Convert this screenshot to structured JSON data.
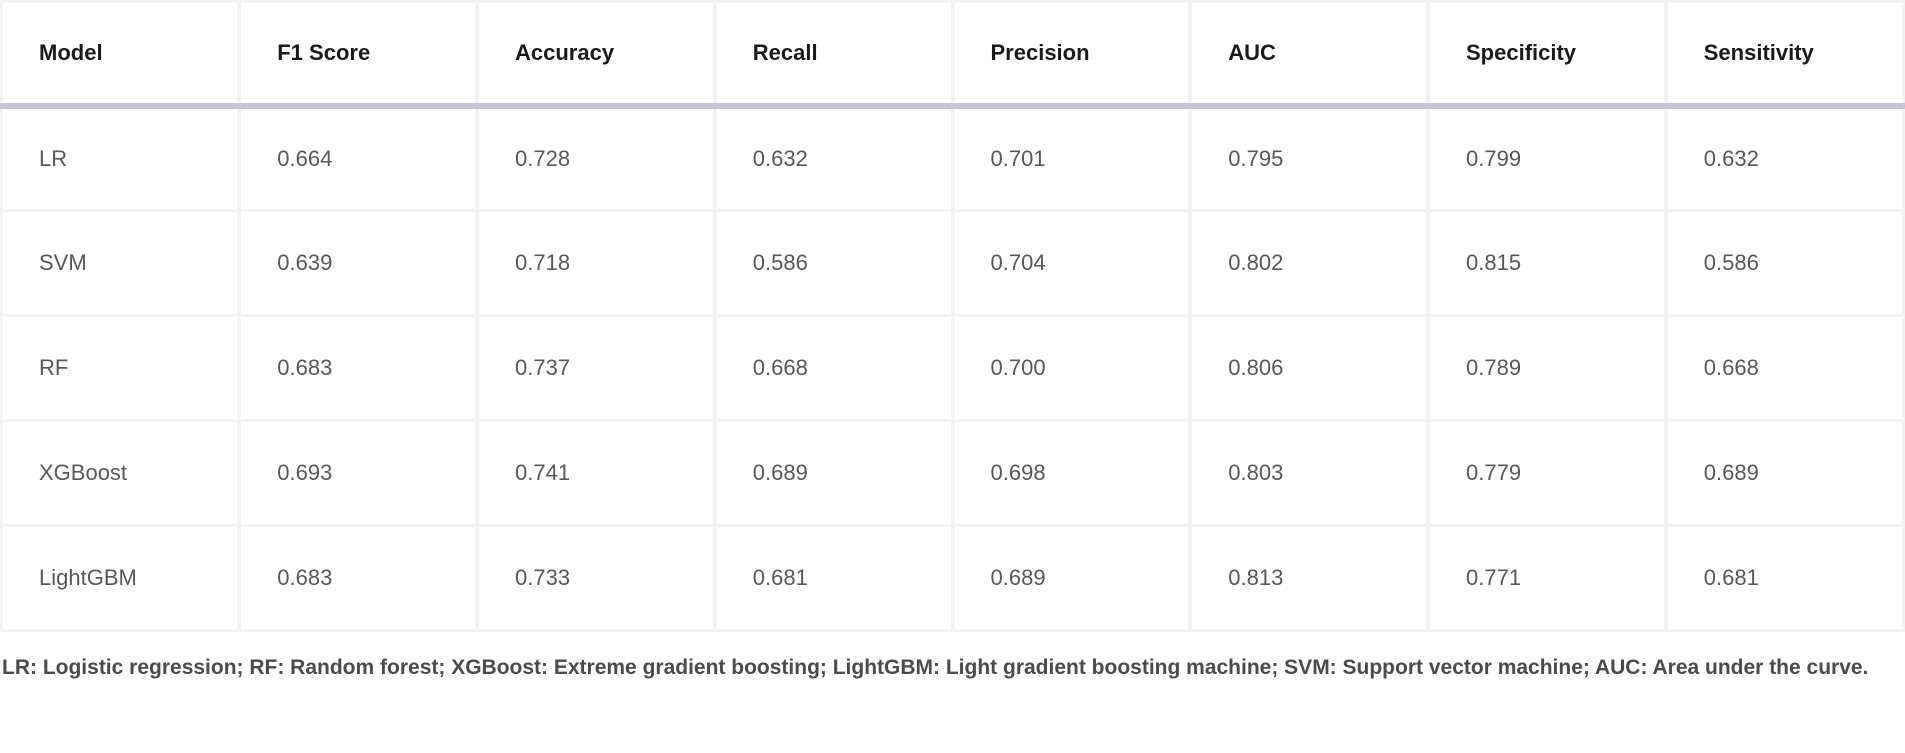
{
  "table": {
    "columns": [
      "Model",
      "F1 Score",
      "Accuracy",
      "Recall",
      "Precision",
      "AUC",
      "Specificity",
      "Sensitivity"
    ],
    "rows": [
      [
        "LR",
        "0.664",
        "0.728",
        "0.632",
        "0.701",
        "0.795",
        "0.799",
        "0.632"
      ],
      [
        "SVM",
        "0.639",
        "0.718",
        "0.586",
        "0.704",
        "0.802",
        "0.815",
        "0.586"
      ],
      [
        "RF",
        "0.683",
        "0.737",
        "0.668",
        "0.700",
        "0.806",
        "0.789",
        "0.668"
      ],
      [
        "XGBoost",
        "0.693",
        "0.741",
        "0.689",
        "0.698",
        "0.803",
        "0.779",
        "0.689"
      ],
      [
        "LightGBM",
        "0.683",
        "0.733",
        "0.681",
        "0.689",
        "0.813",
        "0.771",
        "0.681"
      ]
    ]
  },
  "footnote": "LR: Logistic regression; RF: Random forest; XGBoost: Extreme gradient boosting; LightGBM: Light gradient boosting machine; SVM: Support vector machine; AUC: Area under the curve.",
  "colors": {
    "header_rule": "#c9c5d9",
    "grid_line": "#f2f2f2",
    "header_text": "#1a1a1a",
    "cell_text": "#58585b",
    "footnote_text": "#4b4b4d"
  }
}
